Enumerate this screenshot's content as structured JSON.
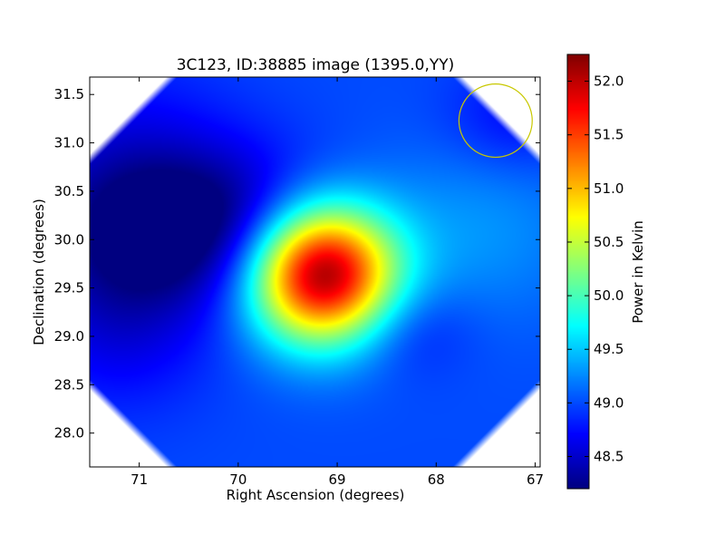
{
  "chart_data": {
    "type": "heatmap",
    "title": "3C123, ID:38885 image (1395.0,YY)",
    "xlabel": "Right Ascension (degrees)",
    "ylabel": "Declination (degrees)",
    "colorbar_label": "Power in Kelvin",
    "xlim": [
      71.5,
      66.95
    ],
    "ylim": [
      27.65,
      31.68
    ],
    "x_ticks": [
      71,
      70,
      69,
      68,
      67
    ],
    "x_tick_labels": [
      "71",
      "70",
      "69",
      "68",
      "67"
    ],
    "y_ticks": [
      28.0,
      28.5,
      29.0,
      29.5,
      30.0,
      30.5,
      31.0,
      31.5
    ],
    "y_tick_labels": [
      "28.0",
      "28.5",
      "29.0",
      "29.5",
      "30.0",
      "30.5",
      "31.0",
      "31.5"
    ],
    "colorbar_range": [
      48.2,
      52.25
    ],
    "colorbar_ticks": [
      48.5,
      49.0,
      49.5,
      50.0,
      50.5,
      51.0,
      51.5,
      52.0
    ],
    "colorbar_tick_labels": [
      "48.5",
      "49.0",
      "49.5",
      "50.0",
      "50.5",
      "51.0",
      "51.5",
      "52.0"
    ],
    "colormap": "jet",
    "background_level": 49.0,
    "features": [
      {
        "kind": "peak",
        "ra": 69.15,
        "dec": 29.65,
        "sigma_ra": 0.52,
        "sigma_dec": 0.5,
        "amplitude": 3.25
      },
      {
        "kind": "trough",
        "ra": 70.3,
        "dec": 30.15,
        "sigma_ra": 0.9,
        "sigma_dec": 0.55,
        "amplitude": -0.85
      },
      {
        "kind": "trough",
        "ra": 71.2,
        "dec": 30.3,
        "sigma_ra": 0.8,
        "sigma_dec": 1.0,
        "amplitude": -0.45
      },
      {
        "kind": "trough",
        "ra": 68.3,
        "dec": 29.1,
        "sigma_ra": 0.45,
        "sigma_dec": 0.35,
        "amplitude": -0.3
      },
      {
        "kind": "trough",
        "ra": 71.2,
        "dec": 29.1,
        "sigma_ra": 0.6,
        "sigma_dec": 0.6,
        "amplitude": -0.25
      },
      {
        "kind": "bump",
        "ra": 67.6,
        "dec": 30.1,
        "sigma_ra": 0.8,
        "sigma_dec": 0.7,
        "amplitude": 0.3
      },
      {
        "kind": "trough",
        "ra": 67.2,
        "dec": 31.25,
        "sigma_ra": 0.5,
        "sigma_dec": 0.4,
        "amplitude": -0.3
      }
    ],
    "marker_circle": {
      "ra": 67.4,
      "dec": 31.23,
      "radius_deg": 0.37,
      "color": "#c8c800"
    },
    "grid": false
  }
}
